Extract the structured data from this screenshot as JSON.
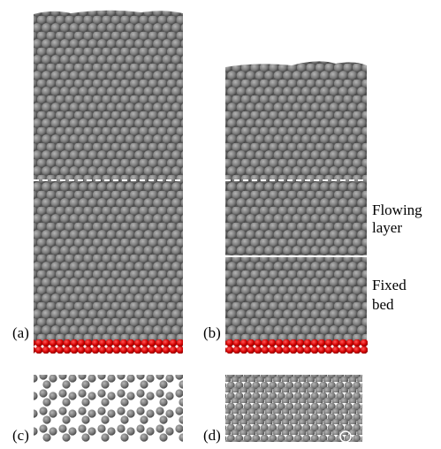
{
  "panels": [
    {
      "label": "(a)"
    },
    {
      "label": "(b)"
    },
    {
      "label": "(c)"
    },
    {
      "label": "(d)"
    }
  ],
  "annotations": [
    {
      "lines": [
        "Flowing",
        "layer"
      ]
    },
    {
      "lines": [
        "Fixed",
        "bed"
      ]
    }
  ]
}
